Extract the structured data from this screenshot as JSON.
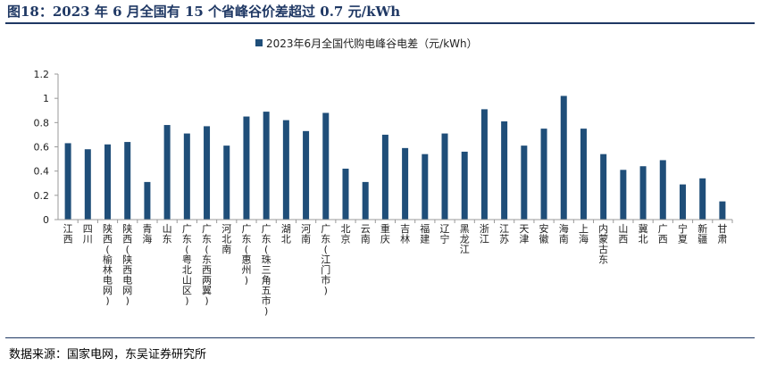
{
  "figure": {
    "title": "图18：2023 年 6 月全国有 15 个省峰谷价差超过 0.7 元/kWh",
    "source": "数据来源：国家电网，东吴证券研究所"
  },
  "colors": {
    "bar": "#1f4e79",
    "accent": "#1f3864"
  },
  "chart_data": {
    "type": "bar",
    "title": "",
    "xlabel": "",
    "ylabel": "",
    "ylim": [
      0,
      1.2
    ],
    "yticks": [
      0,
      0.2,
      0.4,
      0.6,
      0.8,
      1,
      1.2
    ],
    "ytick_labels": [
      "0",
      "0.2",
      "0.4",
      "0.6",
      "0.8",
      "1",
      "1.2"
    ],
    "legend_position": "top-center",
    "grid": false,
    "categories": [
      "江西",
      "四川",
      "陕西(榆林电网)",
      "陕西(陕西电网)",
      "青海",
      "山东",
      "广东(粤北山区)",
      "广东(东西两翼)",
      "河北南",
      "广东(惠州)",
      "广东(珠三角五市)",
      "湖北",
      "河南",
      "广东(江门市)",
      "北京",
      "云南",
      "重庆",
      "吉林",
      "福建",
      "辽宁",
      "黑龙江",
      "浙江",
      "江苏",
      "天津",
      "安徽",
      "海南",
      "上海",
      "内蒙古东",
      "山西",
      "冀北",
      "广西",
      "宁夏",
      "新疆",
      "甘肃"
    ],
    "series": [
      {
        "name": "2023年6月全国代购电峰谷电差（元/kWh）",
        "values": [
          0.63,
          0.58,
          0.62,
          0.64,
          0.31,
          0.78,
          0.71,
          0.77,
          0.61,
          0.85,
          0.89,
          0.82,
          0.73,
          0.88,
          0.42,
          0.31,
          0.7,
          0.59,
          0.54,
          0.71,
          0.56,
          0.91,
          0.81,
          0.61,
          0.75,
          1.02,
          0.75,
          0.54,
          0.41,
          0.44,
          0.49,
          0.29,
          0.34,
          0.15
        ]
      }
    ]
  }
}
